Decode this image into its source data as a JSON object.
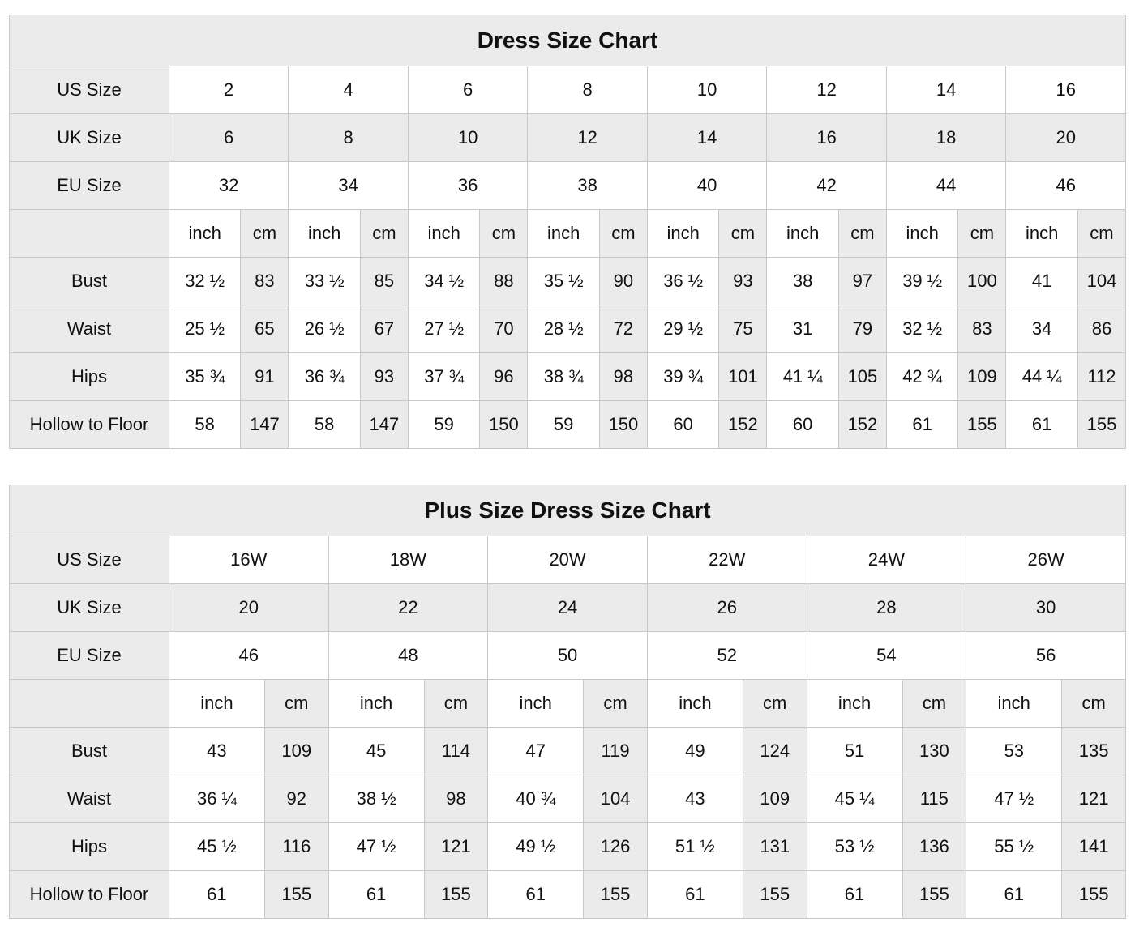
{
  "colors": {
    "shaded": "#ebebeb",
    "border": "#c8c8c8",
    "text": "#111111",
    "background": "#ffffff"
  },
  "unit_labels": {
    "inch": "inch",
    "cm": "cm"
  },
  "tables": [
    {
      "title": "Dress Size Chart",
      "size_rows": [
        {
          "label": "US Size",
          "shaded": false,
          "values": [
            "2",
            "4",
            "6",
            "8",
            "10",
            "12",
            "14",
            "16"
          ]
        },
        {
          "label": "UK Size",
          "shaded": true,
          "values": [
            "6",
            "8",
            "10",
            "12",
            "14",
            "16",
            "18",
            "20"
          ]
        },
        {
          "label": "EU Size",
          "shaded": false,
          "values": [
            "32",
            "34",
            "36",
            "38",
            "40",
            "42",
            "44",
            "46"
          ]
        }
      ],
      "measure_rows": [
        {
          "label": "Bust",
          "pairs": [
            [
              "32 ½",
              "83"
            ],
            [
              "33 ½",
              "85"
            ],
            [
              "34 ½",
              "88"
            ],
            [
              "35 ½",
              "90"
            ],
            [
              "36 ½",
              "93"
            ],
            [
              "38",
              "97"
            ],
            [
              "39 ½",
              "100"
            ],
            [
              "41",
              "104"
            ]
          ]
        },
        {
          "label": "Waist",
          "pairs": [
            [
              "25 ½",
              "65"
            ],
            [
              "26 ½",
              "67"
            ],
            [
              "27 ½",
              "70"
            ],
            [
              "28 ½",
              "72"
            ],
            [
              "29 ½",
              "75"
            ],
            [
              "31",
              "79"
            ],
            [
              "32 ½",
              "83"
            ],
            [
              "34",
              "86"
            ]
          ]
        },
        {
          "label": "Hips",
          "pairs": [
            [
              "35 ¾",
              "91"
            ],
            [
              "36 ¾",
              "93"
            ],
            [
              "37 ¾",
              "96"
            ],
            [
              "38 ¾",
              "98"
            ],
            [
              "39 ¾",
              "101"
            ],
            [
              "41 ¼",
              "105"
            ],
            [
              "42 ¾",
              "109"
            ],
            [
              "44 ¼",
              "112"
            ]
          ]
        },
        {
          "label": "Hollow to Floor",
          "pairs": [
            [
              "58",
              "147"
            ],
            [
              "58",
              "147"
            ],
            [
              "59",
              "150"
            ],
            [
              "59",
              "150"
            ],
            [
              "60",
              "152"
            ],
            [
              "60",
              "152"
            ],
            [
              "61",
              "155"
            ],
            [
              "61",
              "155"
            ]
          ]
        }
      ]
    },
    {
      "title": "Plus Size Dress Size Chart",
      "size_rows": [
        {
          "label": "US Size",
          "shaded": false,
          "values": [
            "16W",
            "18W",
            "20W",
            "22W",
            "24W",
            "26W"
          ]
        },
        {
          "label": "UK Size",
          "shaded": true,
          "values": [
            "20",
            "22",
            "24",
            "26",
            "28",
            "30"
          ]
        },
        {
          "label": "EU Size",
          "shaded": false,
          "values": [
            "46",
            "48",
            "50",
            "52",
            "54",
            "56"
          ]
        }
      ],
      "measure_rows": [
        {
          "label": "Bust",
          "pairs": [
            [
              "43",
              "109"
            ],
            [
              "45",
              "114"
            ],
            [
              "47",
              "119"
            ],
            [
              "49",
              "124"
            ],
            [
              "51",
              "130"
            ],
            [
              "53",
              "135"
            ]
          ]
        },
        {
          "label": "Waist",
          "pairs": [
            [
              "36 ¼",
              "92"
            ],
            [
              "38 ½",
              "98"
            ],
            [
              "40 ¾",
              "104"
            ],
            [
              "43",
              "109"
            ],
            [
              "45 ¼",
              "115"
            ],
            [
              "47 ½",
              "121"
            ]
          ]
        },
        {
          "label": "Hips",
          "pairs": [
            [
              "45 ½",
              "116"
            ],
            [
              "47 ½",
              "121"
            ],
            [
              "49 ½",
              "126"
            ],
            [
              "51 ½",
              "131"
            ],
            [
              "53 ½",
              "136"
            ],
            [
              "55 ½",
              "141"
            ]
          ]
        },
        {
          "label": "Hollow to Floor",
          "pairs": [
            [
              "61",
              "155"
            ],
            [
              "61",
              "155"
            ],
            [
              "61",
              "155"
            ],
            [
              "61",
              "155"
            ],
            [
              "61",
              "155"
            ],
            [
              "61",
              "155"
            ]
          ]
        }
      ]
    }
  ]
}
